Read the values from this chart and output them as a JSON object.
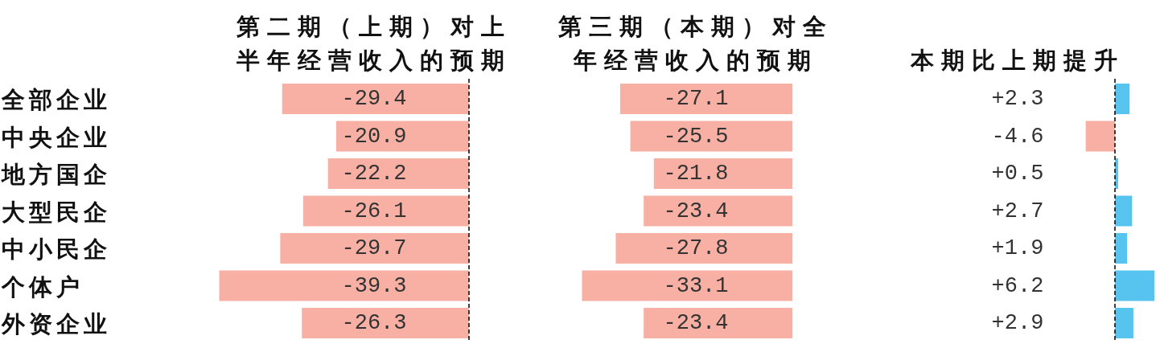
{
  "chart_data": [
    {
      "type": "bar",
      "orientation": "horizontal",
      "title": "第二期（上期）对上半年经营收入的预期",
      "categories": [
        "全部企业",
        "中央企业",
        "地方国企",
        "大型民企",
        "中小民企",
        "个体户",
        "外资企业"
      ],
      "values": [
        -29.4,
        -20.9,
        -22.2,
        -26.1,
        -29.7,
        -39.3,
        -26.3
      ],
      "color": "#f8b0a4",
      "data_labels": true,
      "tick_labels": "y",
      "ref_lines": [
        {
          "axis": "x",
          "value": 0,
          "line_style": "dashed"
        }
      ]
    },
    {
      "type": "bar",
      "orientation": "horizontal",
      "title": "第三期（本期）对全年经营收入的预期",
      "values": [
        -27.1,
        -25.5,
        -21.8,
        -23.4,
        -27.8,
        -33.1,
        -23.4
      ],
      "color": "#f8b0a4",
      "data_labels": true
    },
    {
      "type": "bar",
      "orientation": "horizontal",
      "title": "本期比上期提升",
      "values": [
        2.3,
        -4.6,
        0.5,
        2.7,
        1.9,
        6.2,
        2.9
      ],
      "colors": [
        "#56c4ee",
        "#f8b0a4",
        "#56c4ee",
        "#56c4ee",
        "#56c4ee",
        "#56c4ee",
        "#56c4ee"
      ],
      "value_labels": [
        "+2.3",
        "-4.6",
        "+0.5",
        "+2.7",
        "+1.9",
        "+6.2",
        "+2.9"
      ],
      "ref_lines": [
        {
          "axis": "x",
          "value": 0,
          "line_style": "dashed"
        }
      ]
    }
  ]
}
